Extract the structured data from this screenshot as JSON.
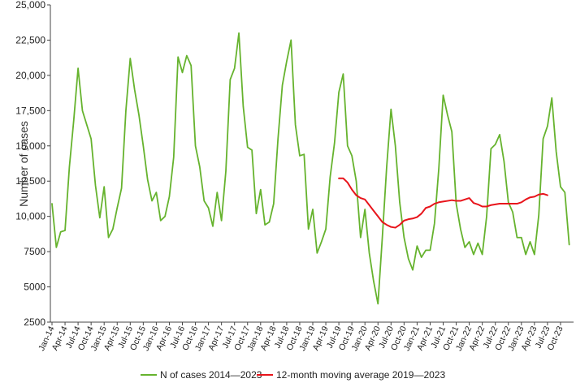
{
  "chart_data": {
    "type": "line",
    "ylabel": "Number of cases",
    "xlabel": "",
    "ylim": [
      2500,
      25000
    ],
    "yticks": [
      2500,
      5000,
      7500,
      10000,
      12500,
      15000,
      17500,
      20000,
      22500,
      25000
    ],
    "ytick_labels": [
      "2500",
      "5000",
      "7500",
      "10,000",
      "12,500",
      "15,000",
      "17,500",
      "20,000",
      "22,500",
      "25,000"
    ],
    "xtick_labels": [
      "Jan-14",
      "Apr-14",
      "Jul-14",
      "Oct-14",
      "Jan-15",
      "Apr-15",
      "Jul-15",
      "Oct-15",
      "Jan-16",
      "Apr-16",
      "Jul-16",
      "Oct-16",
      "Jan-17",
      "Apr-17",
      "Jul-17",
      "Oct-17",
      "Jan-18",
      "Apr-18",
      "Jul-18",
      "Oct-18",
      "Jan-19",
      "Apr-19",
      "Jul-19",
      "Oct-19",
      "Jan-20",
      "Apr-20",
      "Jul-20",
      "Oct-20",
      "Jan-21",
      "Apr-21",
      "Jul-21",
      "Oct-21",
      "Jan-22",
      "Apr-22",
      "Jul-22",
      "Oct-22",
      "Jan-23",
      "Apr-23",
      "Jul-23",
      "Oct-23"
    ],
    "grid": false,
    "legend_position": "bottom",
    "series": [
      {
        "name": "N of cases 2014—2023",
        "color": "#66b32e",
        "start_month": "Jan-14",
        "values": [
          10900,
          7800,
          8900,
          9000,
          13500,
          16800,
          20500,
          17500,
          16500,
          15500,
          12200,
          9900,
          12100,
          8500,
          9100,
          10600,
          12000,
          17500,
          21200,
          19000,
          17200,
          15000,
          12600,
          11100,
          11700,
          9700,
          10000,
          11400,
          14200,
          21300,
          20200,
          21400,
          20700,
          15000,
          13500,
          11100,
          10600,
          9300,
          11700,
          9700,
          13200,
          19700,
          20500,
          23000,
          17800,
          14900,
          14700,
          10200,
          11900,
          9400,
          9600,
          10900,
          15500,
          19300,
          21000,
          22500,
          16500,
          14300,
          14400,
          9100,
          10500,
          7400,
          8200,
          9100,
          12800,
          15200,
          18800,
          20100,
          15000,
          14300,
          12500,
          8500,
          10500,
          7400,
          5400,
          3800,
          8500,
          13500,
          17600,
          15000,
          11000,
          8500,
          7000,
          6200,
          7900,
          7100,
          7600,
          7600,
          9500,
          13400,
          18600,
          17200,
          16000,
          10900,
          9100,
          7800,
          8200,
          7300,
          8100,
          7300,
          10000,
          14800,
          15100,
          15800,
          13900,
          11000,
          10300,
          8500,
          8500,
          7300,
          8200,
          7300,
          10100,
          15500,
          16400,
          18400,
          14600,
          12100,
          11700,
          8000
        ]
      },
      {
        "name": "12-month moving average 2019—2023",
        "color": "#e8141b",
        "start_month": "Jul-19",
        "values": [
          12700,
          12700,
          12400,
          11900,
          11500,
          11300,
          11200,
          10800,
          10400,
          10000,
          9600,
          9400,
          9250,
          9200,
          9400,
          9700,
          9800,
          9850,
          9950,
          10200,
          10600,
          10700,
          10900,
          11000,
          11050,
          11100,
          11150,
          11100,
          11100,
          11200,
          11300,
          10950,
          10850,
          10700,
          10700,
          10800,
          10850,
          10900,
          10900,
          10900,
          10900,
          10900,
          11000,
          11200,
          11350,
          11400,
          11550,
          11600,
          11500
        ]
      }
    ]
  }
}
